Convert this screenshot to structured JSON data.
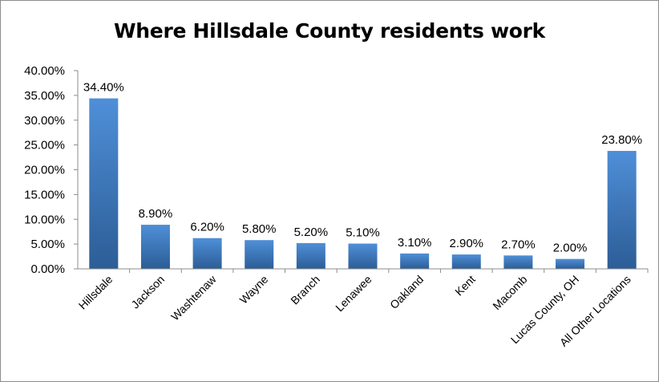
{
  "chart_data": {
    "type": "bar",
    "title": "Where Hillsdale County residents work",
    "xlabel": "",
    "ylabel": "",
    "ylim": [
      0,
      40
    ],
    "yticks": [
      "0.00%",
      "5.00%",
      "10.00%",
      "15.00%",
      "20.00%",
      "25.00%",
      "30.00%",
      "35.00%",
      "40.00%"
    ],
    "categories": [
      "Hillsdale",
      "Jackson",
      "Washtenaw",
      "Wayne",
      "Branch",
      "Lenawee",
      "Oakland",
      "Kent",
      "Macomb",
      "Lucas County, OH",
      "All Other Locations"
    ],
    "values": [
      34.4,
      8.9,
      6.2,
      5.8,
      5.2,
      5.1,
      3.1,
      2.9,
      2.7,
      2.0,
      23.8
    ],
    "data_labels": [
      "34.40%",
      "8.90%",
      "6.20%",
      "5.80%",
      "5.20%",
      "5.10%",
      "3.10%",
      "2.90%",
      "2.70%",
      "2.00%",
      "23.80%"
    ],
    "grid": false,
    "legend": "none",
    "colors": {
      "bar_light": "#4f8fd8",
      "bar_dark": "#2c5d96",
      "axis": "#8c8c8c"
    }
  }
}
